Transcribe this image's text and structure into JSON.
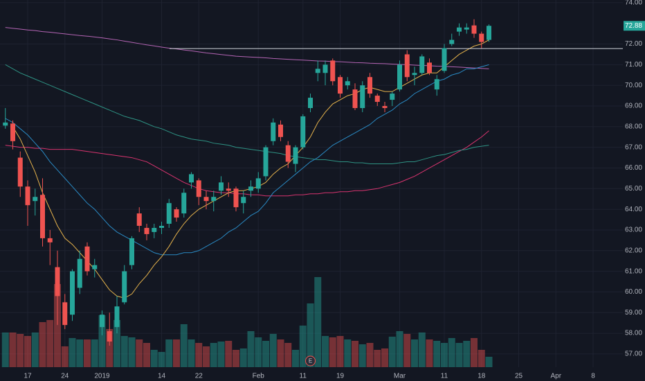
{
  "chart_data": {
    "type": "candlestick",
    "categories": [
      null,
      null,
      null,
      "17",
      null,
      null,
      null,
      null,
      "24",
      null,
      null,
      null,
      null,
      "2019",
      null,
      null,
      null,
      null,
      null,
      null,
      null,
      "14",
      null,
      null,
      null,
      null,
      "22",
      null,
      null,
      null,
      null,
      null,
      null,
      null,
      "Feb",
      null,
      null,
      null,
      null,
      null,
      "11",
      null,
      null,
      null,
      null,
      "19",
      null,
      null,
      null,
      null,
      null,
      null,
      null,
      "Mar",
      null,
      null,
      null,
      null,
      null,
      "11",
      null,
      null,
      null,
      null,
      "18",
      null,
      null,
      null,
      null,
      "25",
      null,
      null,
      null,
      null,
      "Apr",
      null,
      null,
      null,
      null,
      "8",
      null,
      null,
      null,
      null
    ],
    "open": [
      68.05,
      68.15,
      66.5,
      65.1,
      64.4,
      64.7,
      62.6,
      61.2,
      59.5,
      58.9,
      60.2,
      62.2,
      61.1,
      58.3,
      58.1,
      58.3,
      59.5,
      61.3,
      63.8,
      63.1,
      62.9,
      63.1,
      63.3,
      64.0,
      63.8,
      65.3,
      65.4,
      64.6,
      64.4,
      64.9,
      65.0,
      65.0,
      64.3,
      64.9,
      65.0,
      65.6,
      67.3,
      68.1,
      67.1,
      66.2,
      67.0,
      68.9,
      70.6,
      70.6,
      71.2,
      70.4,
      70.0,
      69.8,
      68.9,
      70.4,
      69.5,
      69.0,
      69.3,
      69.8,
      71.5,
      70.5,
      70.6,
      71.1,
      69.8,
      70.7,
      72.0,
      72.6,
      72.7,
      72.9,
      72.5,
      72.2,
      null,
      null,
      null,
      null,
      null,
      null,
      null,
      null,
      null,
      null,
      null,
      null,
      null,
      null,
      null,
      null,
      null,
      null
    ],
    "high": [
      68.9,
      68.3,
      66.8,
      65.4,
      65.0,
      65.5,
      63.0,
      62.0,
      59.9,
      61.1,
      62.0,
      62.4,
      61.6,
      59.1,
      59.0,
      59.8,
      61.3,
      62.7,
      64.1,
      63.3,
      63.3,
      63.4,
      64.5,
      64.1,
      65.0,
      65.8,
      65.5,
      64.9,
      64.9,
      65.6,
      65.3,
      65.1,
      64.9,
      65.4,
      65.8,
      67.1,
      68.4,
      68.3,
      67.3,
      67.1,
      68.6,
      69.6,
      71.2,
      71.2,
      71.3,
      70.5,
      70.4,
      70.1,
      70.2,
      70.6,
      69.6,
      69.2,
      69.7,
      71.2,
      71.7,
      70.9,
      71.5,
      71.3,
      70.5,
      72.0,
      72.5,
      73.0,
      73.0,
      73.2,
      72.6,
      72.95,
      null,
      null,
      null,
      null,
      null,
      null,
      null,
      null,
      null,
      null,
      null,
      null,
      null,
      null,
      null,
      null,
      null,
      null
    ],
    "low": [
      67.9,
      66.9,
      64.6,
      63.2,
      63.7,
      62.2,
      61.3,
      58.4,
      58.2,
      58.6,
      59.9,
      60.8,
      60.7,
      57.9,
      57.4,
      58.0,
      59.4,
      61.1,
      62.9,
      62.5,
      62.6,
      62.8,
      63.1,
      63.4,
      63.6,
      65.0,
      64.2,
      64.0,
      63.9,
      64.7,
      64.6,
      63.9,
      63.8,
      64.6,
      64.8,
      65.4,
      67.1,
      67.3,
      66.0,
      65.8,
      66.9,
      68.7,
      70.2,
      70.0,
      70.0,
      69.4,
      69.8,
      68.8,
      68.7,
      69.4,
      69.0,
      68.7,
      69.0,
      69.7,
      70.2,
      70.0,
      70.5,
      70.5,
      69.5,
      70.6,
      71.9,
      72.4,
      72.5,
      72.3,
      71.8,
      72.1,
      null,
      null,
      null,
      null,
      null,
      null,
      null,
      null,
      null,
      null,
      null,
      null,
      null,
      null,
      null,
      null,
      null,
      null
    ],
    "close": [
      68.2,
      67.3,
      65.1,
      64.2,
      64.6,
      62.6,
      62.4,
      59.8,
      58.4,
      61.0,
      61.6,
      61.0,
      61.3,
      58.9,
      57.6,
      59.3,
      61.0,
      62.6,
      63.2,
      62.8,
      63.1,
      63.2,
      64.3,
      63.6,
      64.8,
      65.7,
      64.6,
      64.4,
      64.6,
      65.3,
      64.9,
      64.1,
      64.6,
      65.1,
      65.5,
      67.0,
      68.2,
      67.5,
      66.3,
      67.0,
      68.5,
      69.4,
      70.8,
      71.0,
      70.2,
      69.6,
      70.2,
      68.9,
      70.0,
      69.6,
      69.2,
      68.9,
      69.6,
      71.0,
      70.4,
      70.6,
      71.4,
      70.6,
      70.3,
      71.8,
      72.2,
      72.8,
      72.8,
      72.5,
      72.1,
      72.88,
      null,
      null,
      null,
      null,
      null,
      null,
      null,
      null,
      null,
      null,
      null,
      null,
      null,
      null,
      null,
      null,
      null,
      null
    ],
    "volume": [
      5.0,
      5.0,
      4.8,
      4.5,
      5.0,
      6.5,
      6.8,
      12.0,
      3.0,
      4.2,
      4.0,
      4.0,
      4.0,
      7.5,
      5.5,
      6.8,
      4.5,
      4.3,
      4.0,
      3.5,
      2.5,
      2.2,
      4.0,
      4.0,
      6.2,
      4.0,
      3.5,
      3.0,
      3.5,
      3.7,
      3.8,
      2.5,
      2.7,
      5.2,
      4.3,
      3.8,
      4.8,
      4.0,
      3.5,
      2.5,
      6.0,
      9.2,
      13.0,
      4.5,
      4.3,
      4.5,
      4.0,
      3.8,
      3.3,
      3.5,
      2.5,
      2.7,
      4.4,
      5.2,
      4.8,
      4.0,
      5.0,
      4.0,
      3.8,
      3.5,
      4.2,
      3.5,
      3.8,
      4.2,
      2.5,
      1.5,
      null,
      null,
      null,
      null,
      null,
      null,
      null,
      null,
      null,
      null,
      null,
      null,
      null,
      null,
      null,
      null,
      null,
      null
    ],
    "up_color": "#26a69a",
    "down_color": "#ef5350",
    "series": [
      {
        "color": "#b565b5",
        "values": [
          72.8,
          72.76,
          72.72,
          72.68,
          72.65,
          72.6,
          72.57,
          72.53,
          72.49,
          72.45,
          72.41,
          72.38,
          72.34,
          72.3,
          72.25,
          72.2,
          72.14,
          72.08,
          72.02,
          71.96,
          71.91,
          71.85,
          71.8,
          71.76,
          71.71,
          71.67,
          71.62,
          71.57,
          71.53,
          71.49,
          71.45,
          71.41,
          71.39,
          71.37,
          71.35,
          71.33,
          71.3,
          71.28,
          71.26,
          71.24,
          71.22,
          71.2,
          71.18,
          71.17,
          71.15,
          71.14,
          71.12,
          71.1,
          71.09,
          71.07,
          71.06,
          71.05,
          71.03,
          71.01,
          71.0,
          70.98,
          70.96,
          70.95,
          70.93,
          70.92,
          70.9,
          70.88,
          70.86,
          70.84,
          70.82,
          70.8,
          null,
          null,
          null,
          null,
          null,
          null,
          null,
          null,
          null,
          null,
          null,
          null,
          null,
          null,
          null,
          null,
          null,
          null
        ]
      },
      {
        "color": "#d9346f",
        "values": [
          67.1,
          67.05,
          67.0,
          67.0,
          66.95,
          66.95,
          66.9,
          66.9,
          66.9,
          66.9,
          66.85,
          66.8,
          66.75,
          66.7,
          66.65,
          66.6,
          66.55,
          66.5,
          66.4,
          66.3,
          66.1,
          65.9,
          65.7,
          65.5,
          65.3,
          65.15,
          65.0,
          64.9,
          64.85,
          64.8,
          64.8,
          64.75,
          64.75,
          64.7,
          64.7,
          64.65,
          64.65,
          64.65,
          64.65,
          64.7,
          64.7,
          64.75,
          64.75,
          64.8,
          64.8,
          64.85,
          64.85,
          64.9,
          64.9,
          64.95,
          65.0,
          65.1,
          65.2,
          65.3,
          65.45,
          65.6,
          65.8,
          66.0,
          66.2,
          66.4,
          66.6,
          66.8,
          67.0,
          67.25,
          67.5,
          67.8,
          null,
          null,
          null,
          null,
          null,
          null,
          null,
          null,
          null,
          null,
          null,
          null,
          null,
          null,
          null,
          null,
          null,
          null
        ]
      },
      {
        "color": "#2e9384",
        "values": [
          71.0,
          70.8,
          70.6,
          70.45,
          70.3,
          70.15,
          70.0,
          69.85,
          69.7,
          69.55,
          69.4,
          69.25,
          69.1,
          68.95,
          68.8,
          68.65,
          68.5,
          68.4,
          68.3,
          68.15,
          68.0,
          67.9,
          67.75,
          67.6,
          67.5,
          67.4,
          67.35,
          67.3,
          67.2,
          67.15,
          67.1,
          67.0,
          66.95,
          66.9,
          66.85,
          66.8,
          66.75,
          66.7,
          66.6,
          66.55,
          66.5,
          66.45,
          66.4,
          66.4,
          66.35,
          66.3,
          66.3,
          66.25,
          66.25,
          66.2,
          66.2,
          66.2,
          66.2,
          66.25,
          66.3,
          66.3,
          66.4,
          66.5,
          66.6,
          66.65,
          66.75,
          66.85,
          66.9,
          67.0,
          67.05,
          67.1,
          null,
          null,
          null,
          null,
          null,
          null,
          null,
          null,
          null,
          null,
          null,
          null,
          null,
          null,
          null,
          null,
          null,
          null
        ]
      },
      {
        "color": "#2a8ac4",
        "values": [
          68.4,
          68.2,
          67.9,
          67.6,
          67.2,
          66.8,
          66.3,
          65.9,
          65.5,
          65.1,
          64.7,
          64.3,
          64.0,
          63.6,
          63.2,
          62.9,
          62.7,
          62.5,
          62.3,
          62.1,
          61.9,
          61.8,
          61.8,
          61.8,
          61.9,
          61.9,
          62.0,
          62.2,
          62.4,
          62.6,
          62.9,
          63.1,
          63.4,
          63.7,
          63.9,
          64.3,
          64.8,
          65.1,
          65.4,
          65.7,
          66.0,
          66.3,
          66.5,
          66.8,
          67.1,
          67.3,
          67.5,
          67.7,
          67.9,
          68.1,
          68.4,
          68.6,
          68.8,
          69.1,
          69.3,
          69.6,
          69.8,
          70.0,
          70.2,
          70.3,
          70.5,
          70.6,
          70.8,
          70.8,
          70.9,
          71.0,
          null,
          null,
          null,
          null,
          null,
          null,
          null,
          null,
          null,
          null,
          null,
          null,
          null,
          null,
          null,
          null,
          null,
          null
        ]
      },
      {
        "color": "#e6b34c",
        "values": [
          null,
          68.0,
          67.4,
          66.6,
          65.8,
          64.8,
          64.0,
          63.2,
          62.6,
          62.3,
          61.9,
          61.5,
          61.1,
          60.6,
          60.1,
          59.8,
          59.7,
          59.9,
          60.4,
          60.8,
          61.3,
          61.7,
          62.2,
          62.8,
          63.3,
          63.7,
          64.0,
          64.2,
          64.4,
          64.6,
          64.8,
          64.9,
          64.9,
          65.0,
          65.1,
          65.3,
          65.7,
          66.0,
          66.2,
          66.6,
          67.0,
          67.5,
          68.2,
          68.7,
          69.1,
          69.3,
          69.5,
          69.6,
          69.8,
          69.9,
          69.8,
          69.7,
          69.7,
          69.9,
          70.1,
          70.3,
          70.5,
          70.6,
          70.6,
          70.9,
          71.2,
          71.5,
          71.7,
          71.9,
          72.0,
          72.2,
          null,
          null,
          null,
          null,
          null,
          null,
          null,
          null,
          null,
          null,
          null,
          null,
          null,
          null,
          null,
          null,
          null,
          null
        ]
      }
    ],
    "hline": 71.78,
    "last_price": 72.88,
    "earnings_marker": "E",
    "ylim": [
      56.36,
      74.13
    ],
    "yticks": [
      {
        "value": 57,
        "label": "57.00"
      },
      {
        "value": 58,
        "label": "58.00"
      },
      {
        "value": 59,
        "label": "59.00"
      },
      {
        "value": 60,
        "label": "60.00"
      },
      {
        "value": 61,
        "label": "61.00"
      },
      {
        "value": 62,
        "label": "62.00"
      },
      {
        "value": 63,
        "label": "63.00"
      },
      {
        "value": 64,
        "label": "64.00"
      },
      {
        "value": 65,
        "label": "65.00"
      },
      {
        "value": 66,
        "label": "66.00"
      },
      {
        "value": 67,
        "label": "67.00"
      },
      {
        "value": 68,
        "label": "68.00"
      },
      {
        "value": 69,
        "label": "69.00"
      },
      {
        "value": 70,
        "label": "70.00"
      },
      {
        "value": 71,
        "label": "71.00"
      },
      {
        "value": 72,
        "label": "72.00"
      },
      {
        "value": 74,
        "label": "74.00"
      }
    ],
    "grid": true
  }
}
